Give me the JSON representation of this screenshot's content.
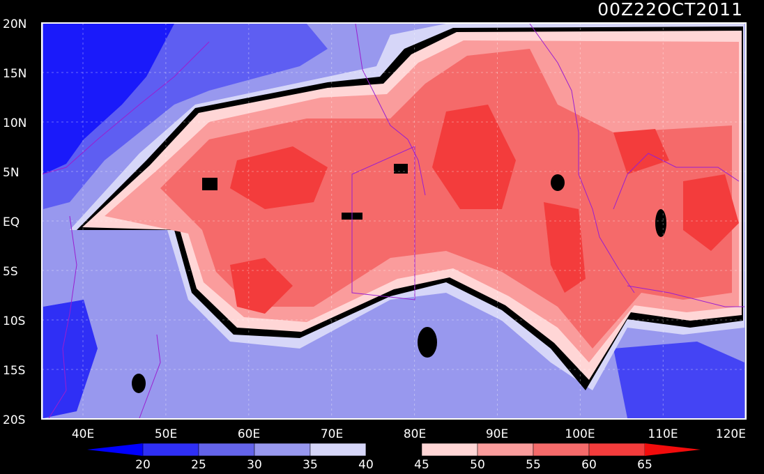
{
  "title": "00Z22OCT2011",
  "lat_labels": [
    "20N",
    "15N",
    "10N",
    "5N",
    "EQ",
    "5S",
    "10S",
    "15S",
    "20S"
  ],
  "lon_labels": [
    "40E",
    "50E",
    "60E",
    "70E",
    "80E",
    "90E",
    "100E",
    "110E",
    "120E"
  ],
  "map_extent": {
    "lon_min": 35,
    "lon_max": 120,
    "lat_min": -20,
    "lat_max": 20
  },
  "colorbar": {
    "labels": [
      "20",
      "25",
      "30",
      "35",
      "40",
      "45",
      "50",
      "55",
      "60",
      "65"
    ],
    "colors": [
      "#0000ff",
      "#2f2ff5",
      "#6464ea",
      "#9898ee",
      "#d6d6f8",
      "#000000",
      "#ffd6d6",
      "#fa9c9c",
      "#f56a6a",
      "#f33c3c",
      "#f20c0c"
    ]
  },
  "colors": {
    "background": "#000000",
    "frame": "#ffffff",
    "coastline": "#9a1ed0",
    "ocean_low": "#0000ff",
    "ocean_mid": "#6464ea",
    "ocean_light": "#d6d6f8",
    "warm_light": "#ffd6d6",
    "warm_mid": "#fa9c9c",
    "warm_high": "#f33c3c"
  }
}
